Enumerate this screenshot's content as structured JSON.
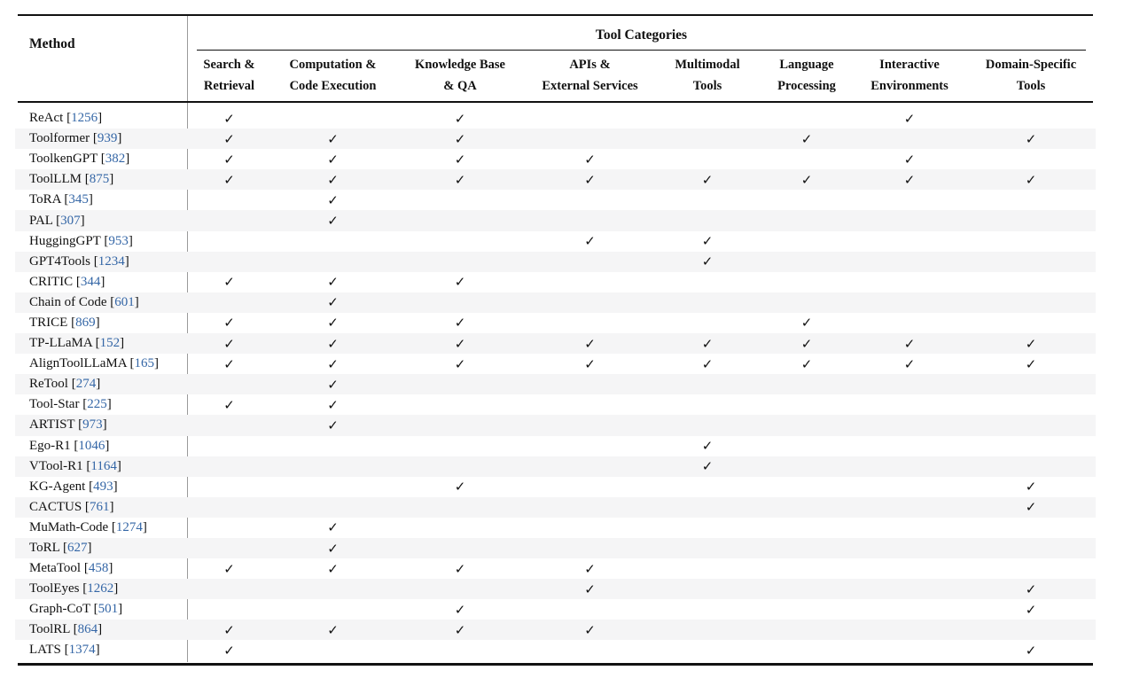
{
  "table": {
    "method_header": "Method",
    "group_header": "Tool Categories",
    "checkmark": "✓",
    "columns": [
      {
        "line1": "Search &",
        "line2": "Retrieval"
      },
      {
        "line1": "Computation &",
        "line2": "Code Execution"
      },
      {
        "line1": "Knowledge Base",
        "line2": "& QA"
      },
      {
        "line1": "APIs &",
        "line2": "External Services"
      },
      {
        "line1": "Multimodal",
        "line2": "Tools"
      },
      {
        "line1": "Language",
        "line2": "Processing"
      },
      {
        "line1": "Interactive",
        "line2": "Environments"
      },
      {
        "line1": "Domain-Specific",
        "line2": "Tools"
      }
    ],
    "rows": [
      {
        "name": "ReAct",
        "cite": "1256",
        "checks": [
          1,
          0,
          1,
          0,
          0,
          0,
          1,
          0
        ]
      },
      {
        "name": "Toolformer",
        "cite": "939",
        "checks": [
          1,
          1,
          1,
          0,
          0,
          1,
          0,
          1
        ]
      },
      {
        "name": "ToolkenGPT",
        "cite": "382",
        "checks": [
          1,
          1,
          1,
          1,
          0,
          0,
          1,
          0
        ]
      },
      {
        "name": "ToolLLM",
        "cite": "875",
        "checks": [
          1,
          1,
          1,
          1,
          1,
          1,
          1,
          1
        ]
      },
      {
        "name": "ToRA",
        "cite": "345",
        "checks": [
          0,
          1,
          0,
          0,
          0,
          0,
          0,
          0
        ]
      },
      {
        "name": "PAL",
        "cite": "307",
        "checks": [
          0,
          1,
          0,
          0,
          0,
          0,
          0,
          0
        ]
      },
      {
        "name": "HuggingGPT",
        "cite": "953",
        "checks": [
          0,
          0,
          0,
          1,
          1,
          0,
          0,
          0
        ]
      },
      {
        "name": "GPT4Tools",
        "cite": "1234",
        "checks": [
          0,
          0,
          0,
          0,
          1,
          0,
          0,
          0
        ]
      },
      {
        "name": "CRITIC",
        "cite": "344",
        "checks": [
          1,
          1,
          1,
          0,
          0,
          0,
          0,
          0
        ]
      },
      {
        "name": "Chain of Code",
        "cite": "601",
        "checks": [
          0,
          1,
          0,
          0,
          0,
          0,
          0,
          0
        ]
      },
      {
        "name": "TRICE",
        "cite": "869",
        "checks": [
          1,
          1,
          1,
          0,
          0,
          1,
          0,
          0
        ]
      },
      {
        "name": "TP-LLaMA",
        "cite": "152",
        "checks": [
          1,
          1,
          1,
          1,
          1,
          1,
          1,
          1
        ]
      },
      {
        "name": "AlignToolLLaMA",
        "cite": "165",
        "checks": [
          1,
          1,
          1,
          1,
          1,
          1,
          1,
          1
        ]
      },
      {
        "name": "ReTool",
        "cite": "274",
        "checks": [
          0,
          1,
          0,
          0,
          0,
          0,
          0,
          0
        ]
      },
      {
        "name": "Tool-Star",
        "cite": "225",
        "checks": [
          1,
          1,
          0,
          0,
          0,
          0,
          0,
          0
        ]
      },
      {
        "name": "ARTIST",
        "cite": "973",
        "checks": [
          0,
          1,
          0,
          0,
          0,
          0,
          0,
          0
        ]
      },
      {
        "name": "Ego-R1",
        "cite": "1046",
        "checks": [
          0,
          0,
          0,
          0,
          1,
          0,
          0,
          0
        ]
      },
      {
        "name": "VTool-R1",
        "cite": "1164",
        "checks": [
          0,
          0,
          0,
          0,
          1,
          0,
          0,
          0
        ]
      },
      {
        "name": "KG-Agent",
        "cite": "493",
        "checks": [
          0,
          0,
          1,
          0,
          0,
          0,
          0,
          1
        ]
      },
      {
        "name": "CACTUS",
        "cite": "761",
        "checks": [
          0,
          0,
          0,
          0,
          0,
          0,
          0,
          1
        ]
      },
      {
        "name": "MuMath-Code",
        "cite": "1274",
        "checks": [
          0,
          1,
          0,
          0,
          0,
          0,
          0,
          0
        ]
      },
      {
        "name": "ToRL",
        "cite": "627",
        "checks": [
          0,
          1,
          0,
          0,
          0,
          0,
          0,
          0
        ]
      },
      {
        "name": "MetaTool",
        "cite": "458",
        "checks": [
          1,
          1,
          1,
          1,
          0,
          0,
          0,
          0
        ]
      },
      {
        "name": "ToolEyes",
        "cite": "1262",
        "checks": [
          0,
          0,
          0,
          1,
          0,
          0,
          0,
          1
        ]
      },
      {
        "name": "Graph-CoT",
        "cite": "501",
        "checks": [
          0,
          0,
          1,
          0,
          0,
          0,
          0,
          1
        ]
      },
      {
        "name": "ToolRL",
        "cite": "864",
        "checks": [
          1,
          1,
          1,
          1,
          0,
          0,
          0,
          0
        ]
      },
      {
        "name": "LATS",
        "cite": "1374",
        "checks": [
          1,
          0,
          0,
          0,
          0,
          0,
          0,
          1
        ]
      }
    ],
    "colors": {
      "link_blue": "#3466a6",
      "stripe": "#f5f5f6",
      "rule_black": "#111111",
      "divider_gray": "#9a9a9a"
    }
  }
}
